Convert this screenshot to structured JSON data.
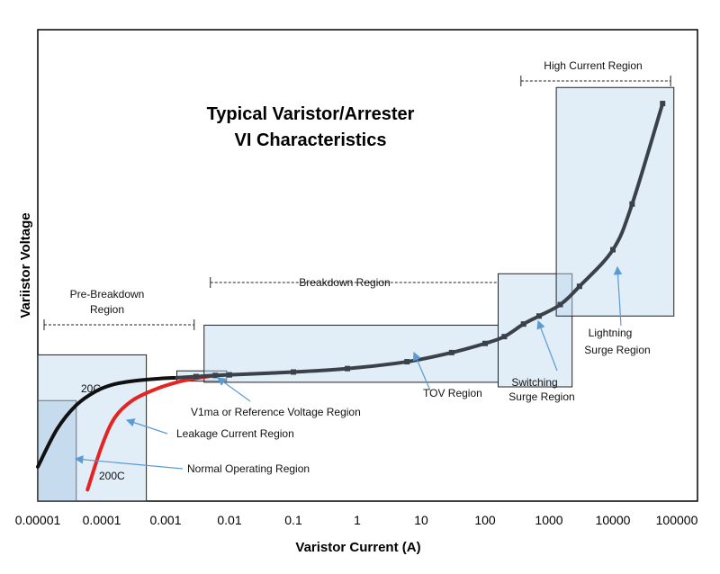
{
  "chart_data": {
    "type": "line",
    "title": [
      "Typical Varistor/Arrester",
      "VI Characteristics"
    ],
    "xlabel": "Varistor Current (A)",
    "ylabel": "Variistor Voltage",
    "x_scale": "log",
    "xlim": [
      1e-05,
      100000
    ],
    "x_tick_labels": [
      "0.00001",
      "0.0001",
      "0.001",
      "0.01",
      "0.1",
      "1",
      "10",
      "100",
      "1000",
      "10000",
      "100000"
    ],
    "y_ticks_shown": false,
    "grid": false,
    "series": [
      {
        "label": "20C",
        "color": "#111111",
        "points": [
          [
            1e-05,
            0.3
          ],
          [
            2e-05,
            0.63
          ],
          [
            4e-05,
            0.84
          ],
          [
            8e-05,
            0.96
          ],
          [
            0.00015,
            1.02
          ],
          [
            0.0003,
            1.05
          ],
          [
            0.0007,
            1.07
          ],
          [
            0.0015,
            1.08
          ]
        ]
      },
      {
        "label": "200C",
        "color": "#e52421",
        "points": [
          [
            6e-05,
            0.1
          ],
          [
            0.0001,
            0.48
          ],
          [
            0.00016,
            0.73
          ],
          [
            0.0003,
            0.88
          ],
          [
            0.0007,
            0.98
          ],
          [
            0.0015,
            1.04
          ],
          [
            0.003,
            1.075
          ],
          [
            0.006,
            1.1
          ]
        ]
      },
      {
        "label": "",
        "color": "#3b4148",
        "points": [
          [
            0.0015,
            1.08
          ],
          [
            0.003,
            1.09
          ],
          [
            0.006,
            1.1
          ],
          [
            0.01,
            1.105
          ],
          [
            0.1,
            1.13
          ],
          [
            0.7,
            1.16
          ],
          [
            6,
            1.22
          ],
          [
            30,
            1.3
          ],
          [
            100,
            1.38
          ],
          [
            200,
            1.44
          ],
          [
            400,
            1.55
          ],
          [
            700,
            1.62
          ],
          [
            1500,
            1.72
          ],
          [
            3000,
            1.88
          ],
          [
            10000,
            2.2
          ],
          [
            20000,
            2.6
          ],
          [
            60000,
            3.48
          ]
        ]
      }
    ],
    "regions": [
      {
        "label": "Normal Operating Region",
        "x": [
          1e-05,
          4e-05
        ],
        "y": [
          0,
          0.88
        ]
      },
      {
        "label": "Leakage Current Region",
        "x": [
          1e-05,
          0.0005
        ],
        "y": [
          0,
          1.28
        ]
      },
      {
        "label": "V1ma or Reference Voltage Region",
        "x": [
          0.0015,
          0.009
        ],
        "y": [
          1.05,
          1.14
        ]
      },
      {
        "label": "TOV Region",
        "x": [
          0.004,
          160
        ],
        "y": [
          1.04,
          1.54
        ]
      },
      {
        "label": "Switching Surge Region",
        "x": [
          160,
          2300
        ],
        "y": [
          1.0,
          1.99
        ]
      },
      {
        "label": "Lightning Surge Region",
        "x": [
          1300,
          90000
        ],
        "y": [
          1.62,
          3.62
        ]
      }
    ],
    "range_brackets": [
      {
        "label": "Pre-Breakdown Region",
        "x": [
          1e-05,
          0.0028
        ]
      },
      {
        "label": "Breakdown Region",
        "x": [
          0.004,
          160
        ]
      },
      {
        "label": "High Current Region",
        "x": [
          290,
          80000
        ]
      }
    ],
    "annotations": [
      "20C",
      "200C",
      "Leakage Current Region",
      "Normal Operating Region",
      "V1ma or Reference Voltage Region",
      "TOV Region",
      "Switching Surge Region",
      "Lightning Surge Region"
    ]
  }
}
